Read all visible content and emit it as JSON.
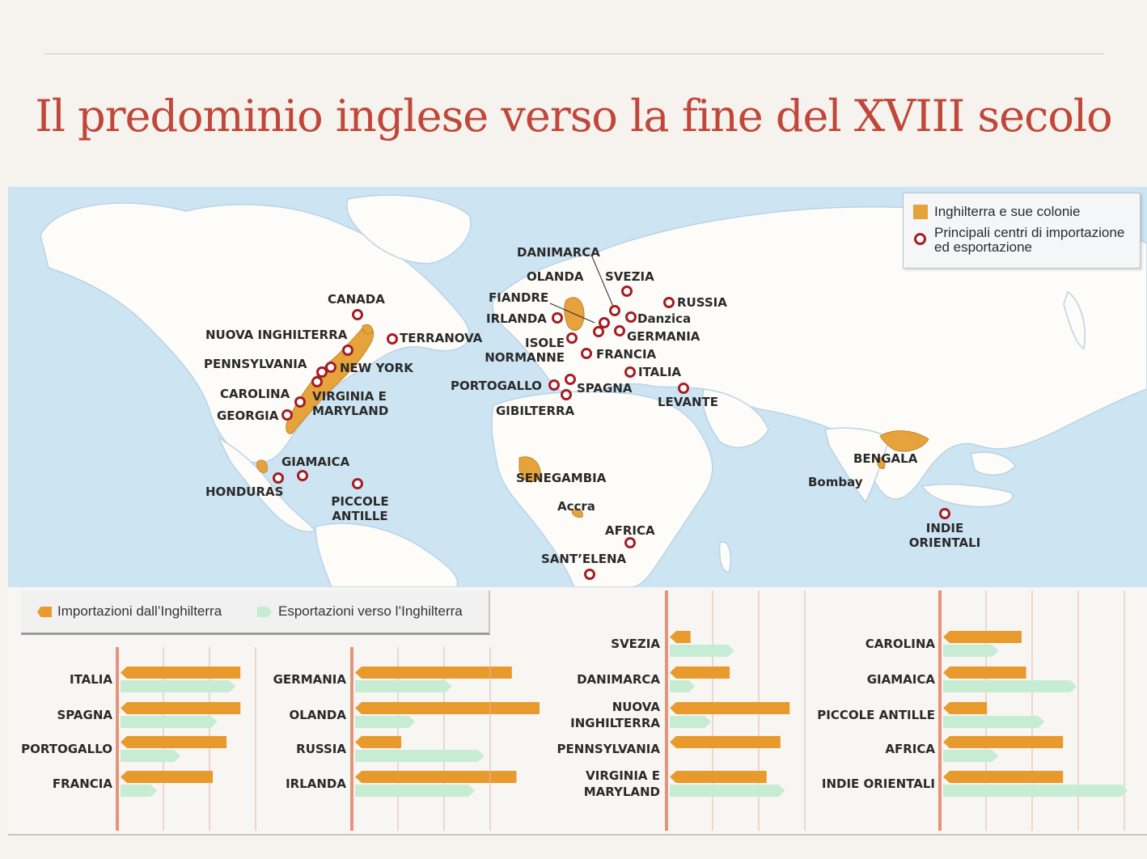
{
  "title": "Il predominio inglese verso la fine del XVIII secolo",
  "colors": {
    "title": "#c0473a",
    "colonies": "#e6a33c",
    "centre": "#a51d24",
    "import": "#e89a2c",
    "export": "#c7ecd4",
    "axis": "#e5937a",
    "ocean": "#cde4f3",
    "land": "#fdfcf8"
  },
  "map": {
    "legend": {
      "colonies": "Inghilterra e sue colonie",
      "centres": "Principali centri di importazione ed esportazione"
    },
    "labels": {
      "canada": "CANADA",
      "nuova_inghilterra": "NUOVA INGHILTERRA",
      "terranova": "TERRANOVA",
      "pennsylvania": "PENNSYLVANIA",
      "new_york": "NEW YORK",
      "carolina": "CAROLINA",
      "virginia": "VIRGINIA E MARYLAND",
      "georgia": "GEORGIA",
      "giamaica": "GIAMAICA",
      "honduras": "HONDURAS",
      "piccole_antille": "PICCOLE ANTILLE",
      "danimarca": "DANIMARCA",
      "olanda": "OLANDA",
      "svezia": "SVEZIA",
      "russia": "RUSSIA",
      "fiandre": "FIANDRE",
      "irlanda": "IRLANDA",
      "danzica": "Danzica",
      "germania": "GERMANIA",
      "isole_normanne": "ISOLE NORMANNE",
      "francia": "FRANCIA",
      "italia": "ITALIA",
      "portogallo": "PORTOGALLO",
      "spagna": "SPAGNA",
      "gibilterra": "GIBILTERRA",
      "levante": "LEVANTE",
      "senegambia": "SENEGAMBIA",
      "accra": "Accra",
      "africa": "AFRICA",
      "sant_elena": "SANT’ELENA",
      "bengala": "BENGALA",
      "bombay": "Bombay",
      "indie_orientali": "INDIE ORIENTALI"
    }
  },
  "chart_data": [
    {
      "type": "bar",
      "orientation": "horizontal",
      "legend": [
        "Importazioni dall’Inghilterra",
        "Esportazioni verso l’Inghilterra"
      ],
      "categories": [
        "ITALIA",
        "SPAGNA",
        "PORTOGALLO",
        "FRANCIA"
      ],
      "series": [
        {
          "name": "Importazioni dall’Inghilterra",
          "values": [
            2.6,
            2.6,
            2.3,
            2.0
          ]
        },
        {
          "name": "Esportazioni verso l’Inghilterra",
          "values": [
            2.5,
            2.1,
            1.3,
            0.8
          ]
        }
      ],
      "xlim": [
        0,
        4
      ],
      "grid": true
    },
    {
      "type": "bar",
      "orientation": "horizontal",
      "categories": [
        "GERMANIA",
        "OLANDA",
        "RUSSIA",
        "IRLANDA"
      ],
      "series": [
        {
          "name": "Importazioni dall’Inghilterra",
          "values": [
            3.4,
            4.0,
            1.0,
            3.5
          ]
        },
        {
          "name": "Esportazioni verso l’Inghilterra",
          "values": [
            2.1,
            1.3,
            2.8,
            2.6
          ]
        }
      ],
      "xlim": [
        0,
        4
      ],
      "grid": true
    },
    {
      "type": "bar",
      "orientation": "horizontal",
      "categories": [
        "SVEZIA",
        "DANIMARCA",
        "NUOVA INGHILTERRA",
        "PENNSYLVANIA",
        "VIRGINIA E MARYLAND"
      ],
      "series": [
        {
          "name": "Importazioni dall’Inghilterra",
          "values": [
            0.45,
            1.3,
            2.6,
            2.4,
            2.1
          ]
        },
        {
          "name": "Esportazioni verso l’Inghilterra",
          "values": [
            1.4,
            0.55,
            0.9,
            0.0,
            2.5
          ]
        }
      ],
      "xlim": [
        0,
        3
      ],
      "grid": true
    },
    {
      "type": "bar",
      "orientation": "horizontal",
      "categories": [
        "CAROLINA",
        "GIAMAICA",
        "PICCOLE ANTILLE",
        "AFRICA",
        "INDIE ORIENTALI"
      ],
      "series": [
        {
          "name": "Importazioni dall’Inghilterra",
          "values": [
            1.7,
            1.8,
            0.95,
            2.6,
            2.6
          ]
        },
        {
          "name": "Esportazioni verso l’Inghilterra",
          "values": [
            1.2,
            2.9,
            2.2,
            1.2,
            4.0
          ]
        }
      ],
      "xlim": [
        0,
        4
      ],
      "grid": true
    }
  ]
}
